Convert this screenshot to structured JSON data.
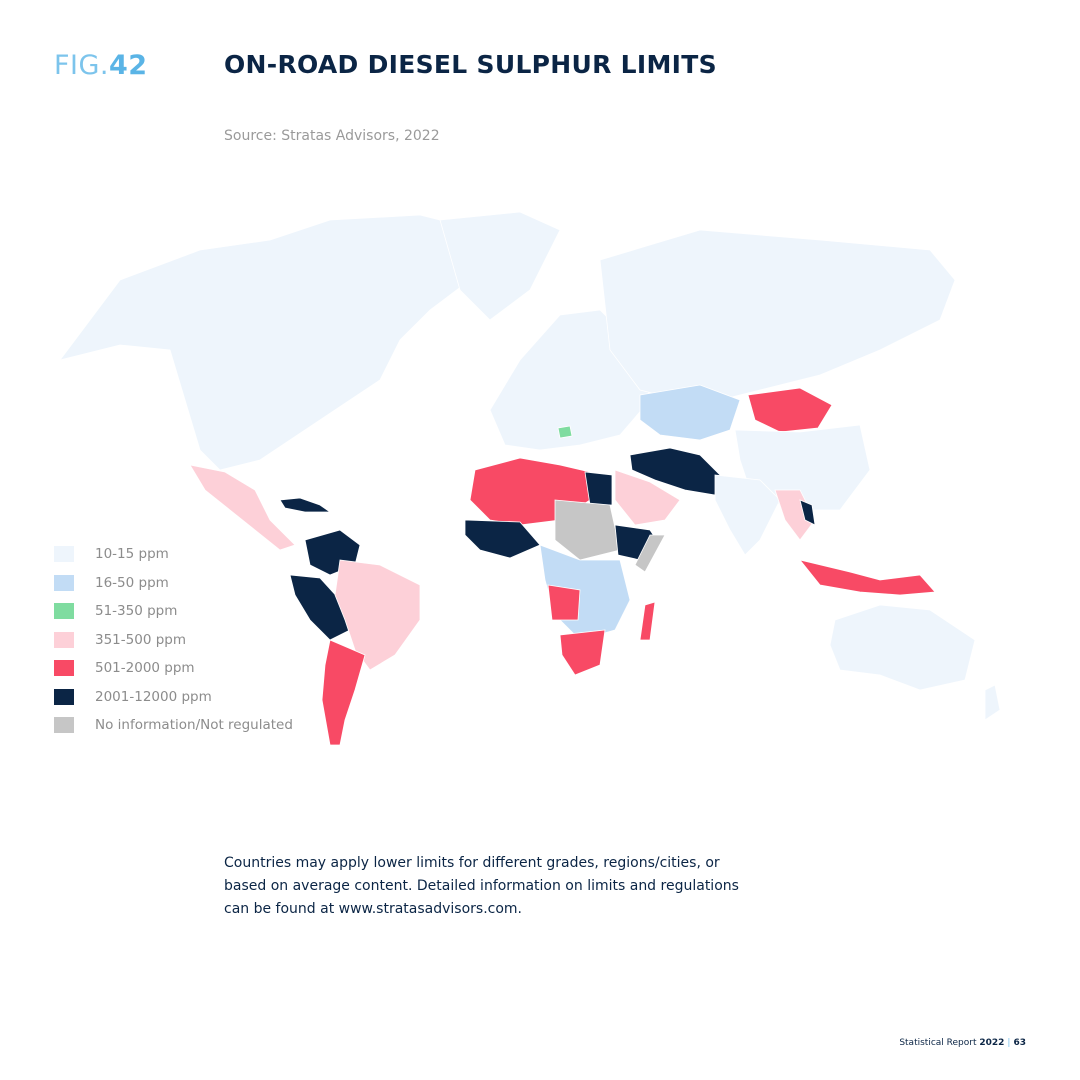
{
  "header": {
    "fig_prefix": "FIG.",
    "fig_number": "42",
    "title": "ON-ROAD DIESEL SULPHUR LIMITS",
    "source": "Source: Stratas Advisors, 2022"
  },
  "legend": [
    {
      "label": "10-15 ppm",
      "color": "#eef5fc"
    },
    {
      "label": "16-50 ppm",
      "color": "#c2dcf5"
    },
    {
      "label": "51-350 ppm",
      "color": "#7fdca0"
    },
    {
      "label": "351-500 ppm",
      "color": "#fdd0d8"
    },
    {
      "label": "501-2000 ppm",
      "color": "#f84a65"
    },
    {
      "label": "2001-12000 ppm",
      "color": "#0b2545"
    },
    {
      "label": "No information/Not regulated",
      "color": "#c6c6c6"
    }
  ],
  "note": "Countries may apply lower limits for different grades, regions/cities, or based on average content. Detailed information on limits and regulations can be found at www.stratasadvisors.com.",
  "footer": {
    "report": "Statistical Report",
    "year": "2022",
    "page": "63"
  }
}
